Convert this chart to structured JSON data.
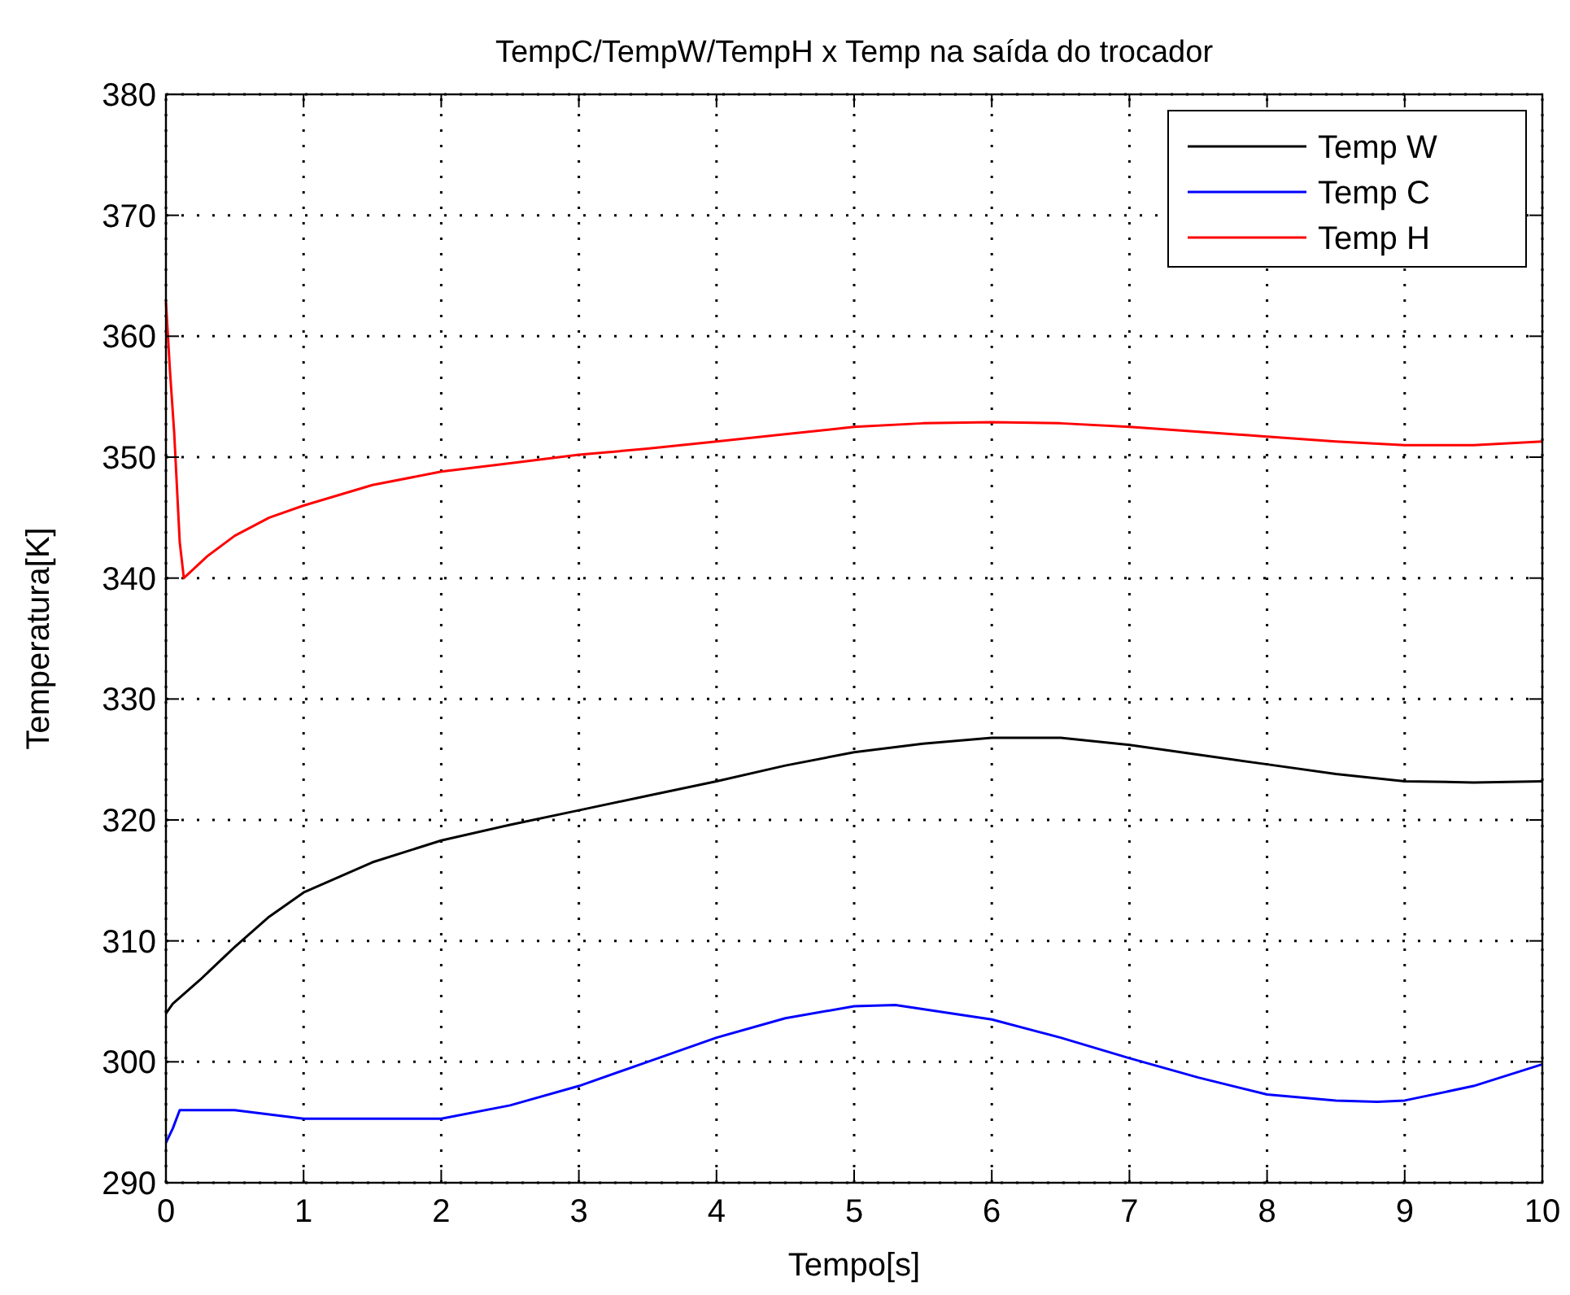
{
  "chart_data": {
    "type": "line",
    "title": "TempC/TempW/TempH x Temp na saída do trocador",
    "xlabel": "Tempo[s]",
    "ylabel": "Temperatura[K]",
    "xlim": [
      0,
      10
    ],
    "xticks": [
      0,
      1,
      2,
      3,
      4,
      5,
      6,
      7,
      8,
      9,
      10
    ],
    "ylim": [
      290,
      380
    ],
    "yticks": [
      290,
      300,
      310,
      320,
      330,
      340,
      350,
      360,
      370,
      380
    ],
    "grid": true,
    "legend": "top right",
    "series": [
      {
        "name": "Temp W",
        "color": "#000000",
        "x": [
          0,
          0.05,
          0.25,
          0.5,
          0.75,
          1,
          1.5,
          2,
          2.5,
          3,
          3.5,
          4,
          4.5,
          5,
          5.5,
          6,
          6.5,
          7,
          7.5,
          8,
          8.5,
          9,
          9.5,
          10
        ],
        "values": [
          304,
          304.8,
          306.8,
          309.5,
          312,
          314,
          316.5,
          318.3,
          319.6,
          320.8,
          322,
          323.2,
          324.5,
          325.6,
          326.3,
          326.8,
          326.8,
          326.2,
          325.4,
          324.6,
          323.8,
          323.2,
          323.1,
          323.2
        ]
      },
      {
        "name": "Temp C",
        "color": "#0000ff",
        "x": [
          0,
          0.05,
          0.1,
          0.5,
          1,
          1.5,
          2,
          2.5,
          3,
          3.5,
          4,
          4.5,
          5,
          5.3,
          6,
          6.5,
          7,
          7.5,
          8,
          8.5,
          8.8,
          9,
          9.5,
          10
        ],
        "values": [
          293.3,
          294.5,
          296,
          296,
          295.3,
          295.3,
          295.3,
          296.4,
          298,
          300,
          302,
          303.6,
          304.6,
          304.7,
          303.5,
          302,
          300.3,
          298.7,
          297.3,
          296.8,
          296.7,
          296.8,
          298,
          299.8
        ]
      },
      {
        "name": "Temp H",
        "color": "#ff0000",
        "x": [
          0,
          0.03,
          0.06,
          0.1,
          0.13,
          0.3,
          0.5,
          0.75,
          1,
          1.5,
          2,
          2.5,
          3,
          3.5,
          4,
          4.5,
          5,
          5.5,
          6,
          6.5,
          7,
          7.5,
          8,
          8.5,
          9,
          9.5,
          10
        ],
        "values": [
          362.8,
          357,
          352,
          343,
          340,
          341.8,
          343.5,
          345,
          346,
          347.7,
          348.8,
          349.5,
          350.2,
          350.7,
          351.3,
          351.9,
          352.5,
          352.8,
          352.9,
          352.8,
          352.5,
          352.1,
          351.7,
          351.3,
          351,
          351,
          351.3
        ]
      }
    ]
  }
}
